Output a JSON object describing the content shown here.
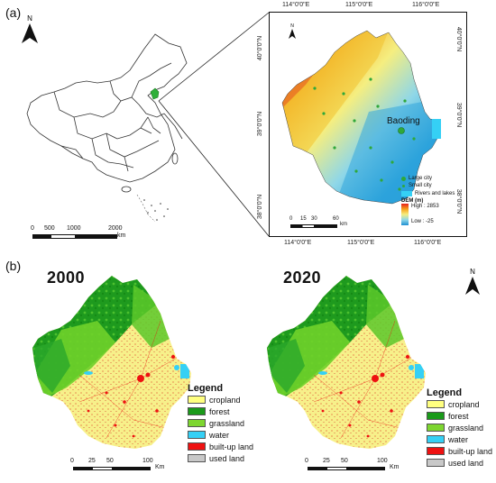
{
  "panels": {
    "a_label": "(a)",
    "b_label": "(b)"
  },
  "north": {
    "label": "N"
  },
  "china_scale": {
    "ticks": [
      "0",
      "500",
      "1000",
      "2000"
    ],
    "unit": "km"
  },
  "inset": {
    "top_ticks": [
      "114°0'0\"E",
      "115°0'0\"E",
      "116°0'0\"E"
    ],
    "bottom_ticks": [
      "114°0'0\"E",
      "115°0'0\"E",
      "116°0'0\"E"
    ],
    "left_ticks": [
      "40°0'0\"N",
      "39°0'0\"N",
      "38°0'0\"N"
    ],
    "right_ticks": [
      "40°0'0\"N",
      "39°0'0\"N",
      "38°0'0\"N"
    ],
    "city": "Baoding",
    "legend": {
      "large_city": "Large city",
      "small_city": "Small city",
      "rivers": "Rivers and lakes",
      "dem_title": "DEM (m)",
      "high": "High : 2853",
      "low": "Low : -25"
    },
    "scale": {
      "ticks": [
        "0",
        "15",
        "30",
        "60"
      ],
      "unit": "km"
    }
  },
  "maps": [
    {
      "year": "2000"
    },
    {
      "year": "2020"
    }
  ],
  "landuse_legend": {
    "title": "Legend",
    "items": [
      {
        "label": "cropland",
        "color": "#ffff80"
      },
      {
        "label": "forest",
        "color": "#1a9a1a"
      },
      {
        "label": "grassland",
        "color": "#7dd630"
      },
      {
        "label": "water",
        "color": "#35d0f5"
      },
      {
        "label": "built-up land",
        "color": "#ee1111"
      },
      {
        "label": "used land",
        "color": "#c8c8c8"
      }
    ]
  },
  "map_scale": {
    "ticks": [
      "0",
      "25",
      "50",
      "100"
    ],
    "unit": "Km"
  }
}
